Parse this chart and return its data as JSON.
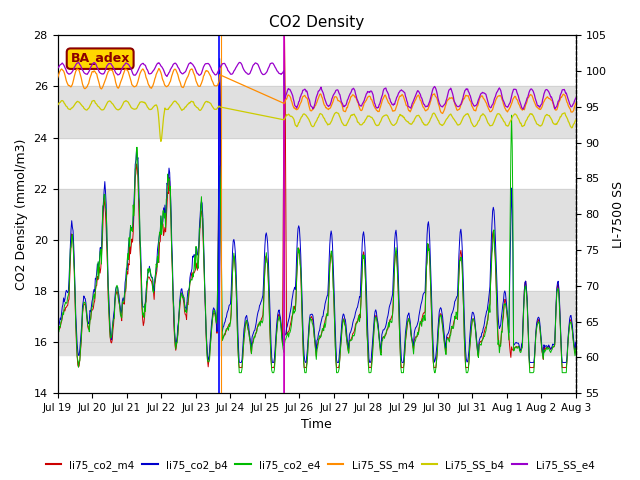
{
  "title": "CO2 Density",
  "ylabel_left": "CO2 Density (mmol/m3)",
  "ylabel_right": "LI-7500 SS",
  "xlabel": "Time",
  "ylim_left": [
    14,
    28
  ],
  "ylim_right": [
    55,
    105
  ],
  "annotation": "BA_adex",
  "annotation_color": "#8B0000",
  "annotation_bg": "#FFD700",
  "x_tick_labels": [
    "Jul 19",
    "Jul 20",
    "Jul 21",
    "Jul 22",
    "Jul 23",
    "Jul 24",
    "Jul 25",
    "Jul 26",
    "Jul 27",
    "Jul 28",
    "Jul 29",
    "Jul 30",
    "Jul 31",
    "Aug 1",
    "Aug 2",
    "Aug 3"
  ],
  "legend_entries": [
    {
      "label": "li75_co2_m4",
      "color": "#CC0000"
    },
    {
      "label": "li75_co2_b4",
      "color": "#0000CC"
    },
    {
      "label": "li75_co2_e4",
      "color": "#00BB00"
    },
    {
      "label": "Li75_SS_m4",
      "color": "#FF8C00"
    },
    {
      "label": "Li75_SS_b4",
      "color": "#CCCC00"
    },
    {
      "label": "Li75_SS_e4",
      "color": "#9900CC"
    }
  ]
}
